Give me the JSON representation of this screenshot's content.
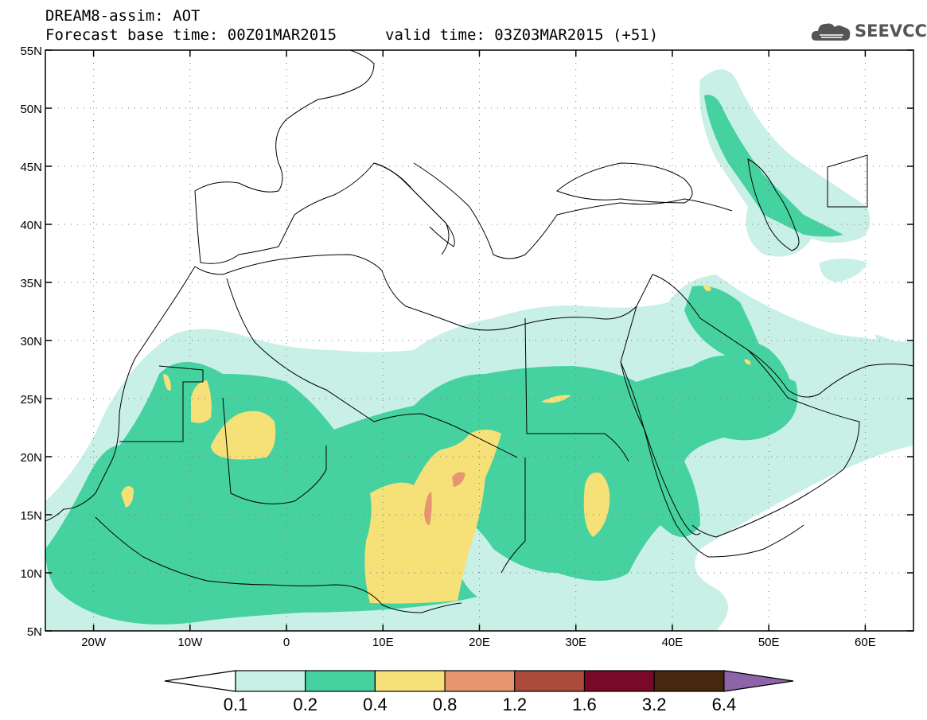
{
  "title": {
    "line1": "DREAM8-assim: AOT",
    "base_time": "Forecast base time: 00Z01MAR2015",
    "valid_time": "valid time: 03Z03MAR2015 (+51)"
  },
  "logo": {
    "text": "SEEVCCC",
    "icon": "cloud-icon"
  },
  "map": {
    "lat_labels": [
      "55N",
      "50N",
      "45N",
      "40N",
      "35N",
      "30N",
      "25N",
      "20N",
      "15N",
      "10N",
      "5N"
    ],
    "lon_labels": [
      "20W",
      "10W",
      "0",
      "10E",
      "20E",
      "30E",
      "40E",
      "50E",
      "60E"
    ],
    "lat_values": [
      55,
      50,
      45,
      40,
      35,
      30,
      25,
      20,
      15,
      10,
      5
    ],
    "lon_values": [
      -20,
      -10,
      0,
      10,
      20,
      30,
      40,
      50,
      60
    ],
    "extent": {
      "lon_min": -25,
      "lon_max": 65,
      "lat_min": 5,
      "lat_max": 55
    }
  },
  "colorbar": {
    "labels": [
      "0.1",
      "0.2",
      "0.4",
      "0.8",
      "1.2",
      "1.6",
      "3.2",
      "6.4"
    ],
    "colors": [
      "#ffffff",
      "#c8f0e6",
      "#46d2a0",
      "#f5e178",
      "#e6966e",
      "#aa4b3c",
      "#780a28",
      "#46280f",
      "#8c64aa"
    ]
  }
}
